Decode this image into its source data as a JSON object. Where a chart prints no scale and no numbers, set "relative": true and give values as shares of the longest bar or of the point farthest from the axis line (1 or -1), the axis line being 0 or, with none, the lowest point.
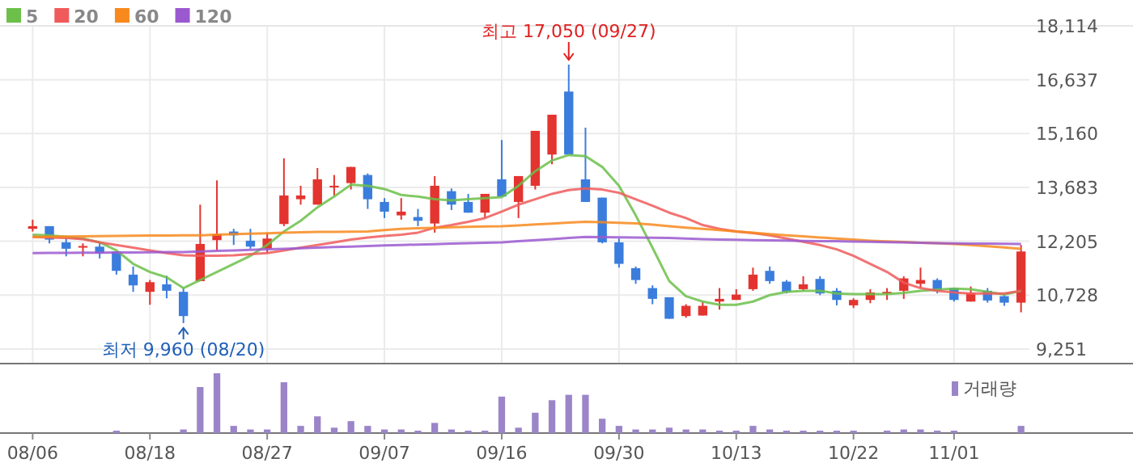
{
  "chart_data": [
    {
      "type": "candlestick",
      "categories": [
        null,
        null,
        null,
        null,
        null,
        null,
        null,
        null,
        null,
        null,
        null,
        null,
        null,
        null,
        null,
        null,
        null,
        null,
        null,
        null,
        null,
        null,
        null,
        null,
        null,
        null,
        null,
        null,
        null,
        null,
        null,
        null,
        null,
        null,
        null,
        null,
        null,
        null,
        null,
        null,
        null,
        null,
        null,
        null,
        null,
        null,
        null,
        null,
        null,
        null,
        null,
        null,
        null,
        null,
        null,
        null,
        null,
        null,
        null,
        null
      ],
      "ohlc": [
        [
          12546,
          12797,
          12472,
          12620
        ],
        [
          12620,
          12620,
          12147,
          12250
        ],
        [
          12177,
          12280,
          11792,
          12000
        ],
        [
          12030,
          12147,
          11792,
          12075
        ],
        [
          12058,
          12176,
          11733,
          11881
        ],
        [
          11925,
          11925,
          11290,
          11394
        ],
        [
          11290,
          11512,
          10818,
          10995
        ],
        [
          10818,
          11142,
          10463,
          11083
        ],
        [
          11024,
          11260,
          10640,
          10847
        ],
        [
          10818,
          10921,
          9960,
          10153
        ],
        [
          11113,
          13210,
          11113,
          12132
        ],
        [
          12236,
          13875,
          11955,
          12398
        ],
        [
          12472,
          12546,
          12103,
          12368
        ],
        [
          12221,
          12546,
          12000,
          12058
        ],
        [
          12000,
          12442,
          11881,
          12280
        ],
        [
          12678,
          14480,
          12620,
          13461
        ],
        [
          13358,
          13727,
          13210,
          13461
        ],
        [
          13210,
          14215,
          13210,
          13904
        ],
        [
          13683,
          14023,
          13461,
          13727
        ],
        [
          13801,
          14244,
          13624,
          14244
        ],
        [
          14023,
          14067,
          13092,
          13358
        ],
        [
          13284,
          13388,
          12841,
          13018
        ],
        [
          12915,
          13388,
          12797,
          13018
        ],
        [
          12870,
          13092,
          12620,
          12767
        ],
        [
          12693,
          13993,
          12442,
          13727
        ],
        [
          13579,
          13653,
          13062,
          13210
        ],
        [
          13284,
          13505,
          12989,
          12989
        ],
        [
          12989,
          13505,
          12841,
          13505
        ],
        [
          13904,
          14983,
          13432,
          13432
        ],
        [
          13284,
          13993,
          12841,
          13993
        ],
        [
          13727,
          15234,
          13624,
          15234
        ],
        [
          14584,
          15677,
          14318,
          15677
        ],
        [
          16312,
          17050,
          14584,
          14584
        ],
        [
          13904,
          15322,
          13284,
          13284
        ],
        [
          13402,
          13402,
          12147,
          12176
        ],
        [
          12176,
          12280,
          11482,
          11586
        ],
        [
          11467,
          11512,
          11039,
          11142
        ],
        [
          10921,
          10995,
          10478,
          10625
        ],
        [
          10670,
          10670,
          10079,
          10079
        ],
        [
          10153,
          10478,
          10108,
          10434
        ],
        [
          10168,
          10551,
          10168,
          10434
        ],
        [
          10551,
          10921,
          10330,
          10625
        ],
        [
          10596,
          10891,
          10596,
          10743
        ],
        [
          10891,
          11482,
          10847,
          11290
        ],
        [
          11394,
          11512,
          11039,
          11113
        ],
        [
          11098,
          11142,
          10774,
          10818
        ],
        [
          10891,
          11245,
          10847,
          11024
        ],
        [
          11172,
          11245,
          10728,
          10774
        ],
        [
          10847,
          10921,
          10448,
          10596
        ],
        [
          10448,
          10640,
          10374,
          10596
        ],
        [
          10596,
          10891,
          10507,
          10803
        ],
        [
          10773,
          10921,
          10596,
          10818
        ],
        [
          10847,
          11245,
          10625,
          11187
        ],
        [
          11039,
          11482,
          10921,
          11142
        ],
        [
          11142,
          11187,
          10774,
          10847
        ],
        [
          10921,
          10921,
          10551,
          10596
        ],
        [
          10551,
          10965,
          10551,
          10773
        ],
        [
          10847,
          10921,
          10521,
          10581
        ],
        [
          10699,
          10728,
          10433,
          10521
        ],
        [
          10521,
          12103,
          10256,
          11925
        ]
      ],
      "colors": [
        "#e3342f",
        "#3b7ddd",
        "#3b7ddd",
        "#e3342f",
        "#3b7ddd",
        "#3b7ddd",
        "#3b7ddd",
        "#e3342f",
        "#3b7ddd",
        "#3b7ddd",
        "#e3342f",
        "#e3342f",
        "#3b7ddd",
        "#3b7ddd",
        "#e3342f",
        "#e3342f",
        "#e3342f",
        "#e3342f",
        "#e3342f",
        "#e3342f",
        "#3b7ddd",
        "#3b7ddd",
        "#e3342f",
        "#3b7ddd",
        "#e3342f",
        "#3b7ddd",
        "#3b7ddd",
        "#e3342f",
        "#3b7ddd",
        "#e3342f",
        "#e3342f",
        "#e3342f",
        "#3b7ddd",
        "#3b7ddd",
        "#3b7ddd",
        "#3b7ddd",
        "#3b7ddd",
        "#3b7ddd",
        "#3b7ddd",
        "#e3342f",
        "#e3342f",
        "#e3342f",
        "#e3342f",
        "#e3342f",
        "#3b7ddd",
        "#3b7ddd",
        "#e3342f",
        "#3b7ddd",
        "#3b7ddd",
        "#e3342f",
        "#e3342f",
        "#e3342f",
        "#e3342f",
        "#e3342f",
        "#3b7ddd",
        "#3b7ddd",
        "#e3342f",
        "#3b7ddd",
        "#3b7ddd",
        "#e3342f"
      ],
      "series": [
        {
          "name": "5",
          "type": "line",
          "color": "#6cc04a",
          "values": [
            12383,
            12369,
            12324,
            12280,
            12176,
            11955,
            11586,
            11364,
            11216,
            10921,
            11142,
            11364,
            11586,
            11807,
            12103,
            12472,
            12767,
            13136,
            13432,
            13757,
            13727,
            13639,
            13476,
            13432,
            13358,
            13329,
            13358,
            13388,
            13417,
            13727,
            14126,
            14422,
            14570,
            14540,
            14244,
            13727,
            12915,
            12029,
            11113,
            10699,
            10551,
            10463,
            10463,
            10551,
            10728,
            10817,
            10847,
            10847,
            10773,
            10758,
            10758,
            10758,
            10788,
            10847,
            10876,
            10906,
            10891,
            10817,
            10744,
            10847
          ]
        },
        {
          "name": "20",
          "type": "line",
          "color": "#f05a5a",
          "values": [
            12324,
            12309,
            12295,
            12265,
            12176,
            12103,
            12029,
            11955,
            11881,
            11822,
            11807,
            11807,
            11822,
            11852,
            11881,
            11955,
            12029,
            12103,
            12176,
            12250,
            12309,
            12354,
            12383,
            12442,
            12575,
            12649,
            12738,
            12841,
            13018,
            13210,
            13358,
            13506,
            13609,
            13653,
            13624,
            13535,
            13358,
            13181,
            12989,
            12841,
            12649,
            12546,
            12472,
            12428,
            12369,
            12280,
            12191,
            12103,
            11984,
            11807,
            11586,
            11364,
            11069,
            10921,
            10847,
            10803,
            10773,
            10773,
            10773,
            10847
          ]
        },
        {
          "name": "60",
          "type": "line",
          "color": "#f7891d",
          "values": [
            12324,
            12330,
            12335,
            12340,
            12345,
            12350,
            12355,
            12360,
            12365,
            12369,
            12370,
            12385,
            12400,
            12415,
            12425,
            12440,
            12450,
            12460,
            12465,
            12470,
            12472,
            12510,
            12546,
            12560,
            12575,
            12590,
            12600,
            12610,
            12620,
            12640,
            12665,
            12690,
            12715,
            12738,
            12730,
            12710,
            12693,
            12660,
            12620,
            12580,
            12546,
            12510,
            12472,
            12440,
            12400,
            12369,
            12340,
            12310,
            12280,
            12250,
            12221,
            12200,
            12185,
            12165,
            12150,
            12132,
            12100,
            12070,
            12035,
            11999
          ]
        },
        {
          "name": "120",
          "type": "line",
          "color": "#9b59d0",
          "values": [
            11881,
            11885,
            11888,
            11891,
            11894,
            11897,
            11900,
            11904,
            11907,
            11910,
            11925,
            11940,
            11955,
            11970,
            11985,
            11999,
            12015,
            12030,
            12045,
            12060,
            12075,
            12090,
            12103,
            12115,
            12125,
            12140,
            12150,
            12165,
            12176,
            12205,
            12235,
            12265,
            12295,
            12324,
            12318,
            12312,
            12306,
            12300,
            12295,
            12280,
            12265,
            12250,
            12245,
            12238,
            12230,
            12222,
            12215,
            12210,
            12206,
            12198,
            12190,
            12180,
            12172,
            12163,
            12155,
            12147,
            12143,
            12140,
            12136,
            12132
          ]
        }
      ],
      "ylim": [
        8850,
        18114
      ],
      "yticks": [
        {
          "value": 9251,
          "label": "9,251"
        },
        {
          "value": 10728,
          "label": "10,728"
        },
        {
          "value": 12205,
          "label": "12,205"
        },
        {
          "value": 13683,
          "label": "13,683"
        },
        {
          "value": 15160,
          "label": "15,160"
        },
        {
          "value": 16637,
          "label": "16,637"
        },
        {
          "value": 18114,
          "label": "18,114"
        }
      ],
      "annotations": [
        {
          "text": "최고 17,050 (09/27)",
          "y": 17050
        },
        {
          "text": "최저 9,960 (08/20)",
          "y": 9960
        }
      ],
      "grid": true,
      "legend": "top left",
      "tick_labels": "y"
    },
    {
      "type": "bar",
      "relative": true,
      "categories": [
        "08/06",
        null,
        null,
        null,
        null,
        null,
        null,
        "08/18",
        null,
        null,
        null,
        null,
        null,
        null,
        "08/27",
        null,
        null,
        null,
        null,
        null,
        null,
        "09/07",
        null,
        null,
        null,
        null,
        null,
        null,
        "09/16",
        null,
        null,
        null,
        null,
        null,
        null,
        "09/30",
        null,
        null,
        null,
        null,
        null,
        null,
        "10/13",
        null,
        null,
        null,
        null,
        null,
        null,
        "10/22",
        null,
        null,
        null,
        null,
        null,
        "11/01",
        null,
        null,
        null,
        null
      ],
      "series": [
        {
          "name": "거래량",
          "color": "#9b85c8",
          "values": [
            0,
            0,
            0,
            0,
            0,
            0.04,
            0,
            0,
            0,
            0.06,
            0.77,
            1,
            0.12,
            0.06,
            0.06,
            0.85,
            0.12,
            0.28,
            0.09,
            0.2,
            0.12,
            0.06,
            0.06,
            0.04,
            0.17,
            0.06,
            0.04,
            0.04,
            0.61,
            0.09,
            0.34,
            0.55,
            0.64,
            0.64,
            0.24,
            0.12,
            0.06,
            0.06,
            0.09,
            0.06,
            0.06,
            0.04,
            0.04,
            0.12,
            0.06,
            0.04,
            0.04,
            0.04,
            0.04,
            0.04,
            0,
            0.04,
            0.06,
            0.06,
            0.04,
            0.04,
            0,
            0,
            0,
            0.12
          ]
        }
      ],
      "legend": "top right",
      "tick_labels": "x"
    }
  ]
}
